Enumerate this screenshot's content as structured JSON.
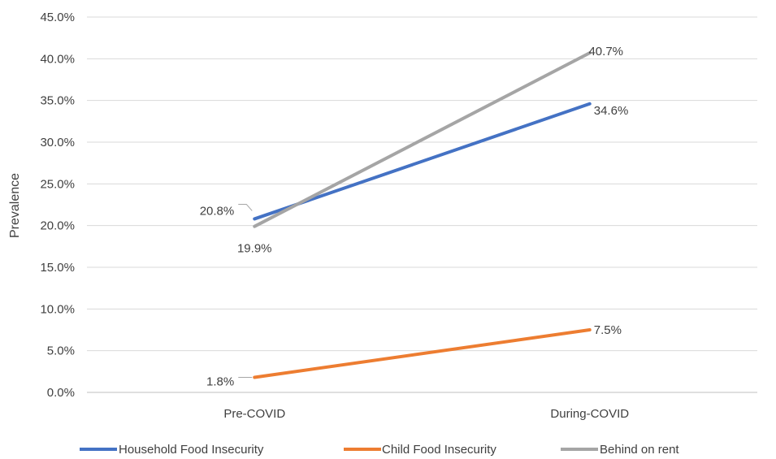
{
  "chart_data": {
    "type": "line",
    "title": "",
    "xlabel": "",
    "ylabel": "Prevalence",
    "categories": [
      "Pre-COVID",
      "During-COVID"
    ],
    "ylim": [
      0,
      45
    ],
    "y_ticks": [
      0,
      5,
      10,
      15,
      20,
      25,
      30,
      35,
      40,
      45
    ],
    "y_tick_labels": [
      "0.0%",
      "5.0%",
      "10.0%",
      "15.0%",
      "20.0%",
      "25.0%",
      "30.0%",
      "35.0%",
      "40.0%",
      "45.0%"
    ],
    "grid": "horizontal",
    "legend_position": "bottom",
    "series": [
      {
        "name": "Household Food Insecurity",
        "color": "#4472C4",
        "values": [
          20.8,
          34.6
        ],
        "labels": [
          "20.8%",
          "34.6%"
        ]
      },
      {
        "name": "Child Food Insecurity",
        "color": "#ED7D31",
        "values": [
          1.8,
          7.5
        ],
        "labels": [
          "1.8%",
          "7.5%"
        ]
      },
      {
        "name": "Behind on rent",
        "color": "#A5A5A5",
        "values": [
          19.9,
          40.7
        ],
        "labels": [
          "19.9%",
          "40.7%"
        ]
      }
    ]
  }
}
